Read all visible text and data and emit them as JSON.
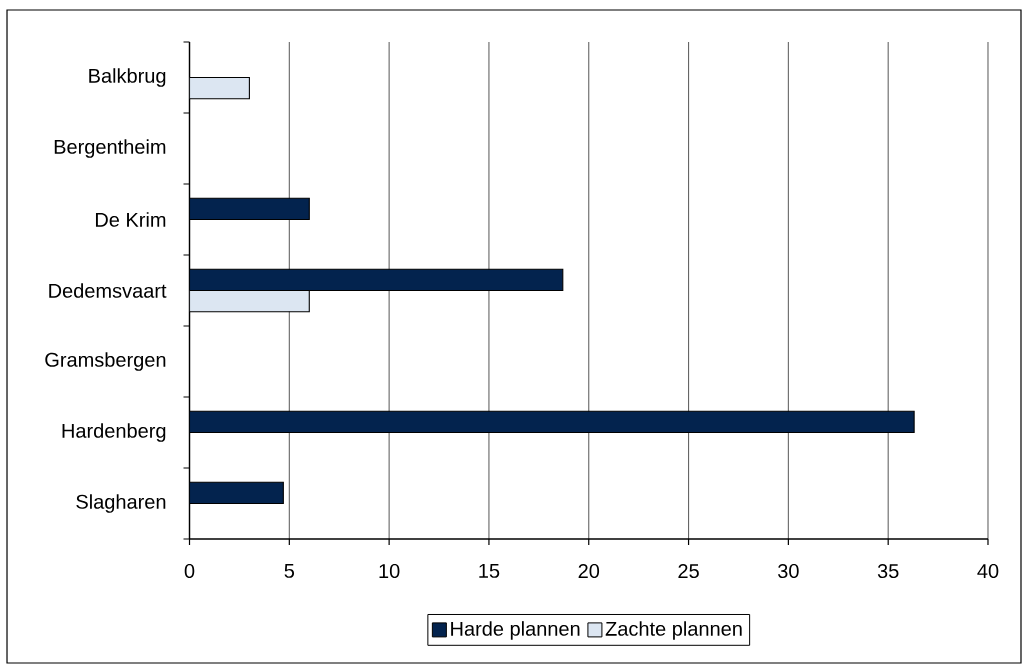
{
  "chart_data": {
    "type": "bar",
    "orientation": "horizontal",
    "categories": [
      "Balkbrug",
      "Bergentheim",
      "De Krim",
      "Dedemsvaart",
      "Gramsbergen",
      "Hardenberg",
      "Slagharen"
    ],
    "series": [
      {
        "name": "Harde plannen",
        "color": "#03234e",
        "values": [
          null,
          null,
          6,
          18.7,
          null,
          36.3,
          4.7
        ]
      },
      {
        "name": "Zachte plannen",
        "color": "#dce6f2",
        "values": [
          3,
          null,
          null,
          6,
          null,
          null,
          null
        ]
      }
    ],
    "xlim": [
      0,
      40
    ],
    "xticks": [
      0,
      5,
      10,
      15,
      20,
      25,
      30,
      35,
      40
    ],
    "grid": "x",
    "legend": "bottom"
  }
}
